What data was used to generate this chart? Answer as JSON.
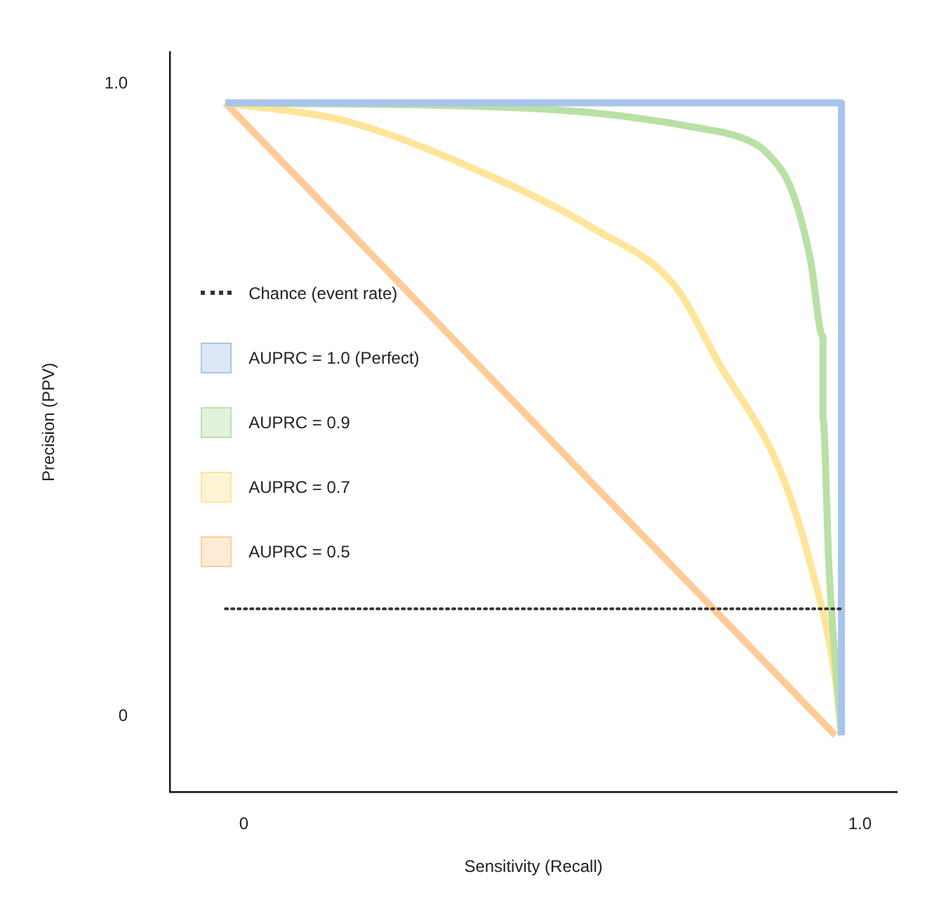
{
  "chart_data": {
    "type": "line",
    "xlabel": "Sensitivity (Recall)",
    "ylabel": "Precision (PPV)",
    "xlim": [
      -0.12,
      1.06
    ],
    "ylim": [
      -0.12,
      1.05
    ],
    "xticks": [
      0,
      {
        "value": 1,
        "label": "1.0"
      }
    ],
    "yticks": [
      0,
      {
        "value": 1,
        "label": "1.0"
      }
    ],
    "grid": false,
    "legend": "left",
    "marker": "none",
    "series": [
      {
        "name": "Chance (event rate)",
        "color": "#333333",
        "line_style": "dotted",
        "x": [
          -0.03,
          0.97
        ],
        "values": [
          0.17,
          0.17
        ]
      },
      {
        "name": "AUPRC = 1.0 (Perfect)",
        "color": "#a9c4eb",
        "x": [
          -0.03,
          0.97,
          0.97
        ],
        "values": [
          0.97,
          0.97,
          -0.03
        ]
      },
      {
        "name": "AUPRC = 0.9",
        "color": "#b9e0a5",
        "x": [
          -0.03,
          0.49,
          0.74,
          0.82,
          0.85,
          0.89,
          0.92,
          0.94,
          0.94,
          0.95,
          0.97
        ],
        "values": [
          0.97,
          0.96,
          0.93,
          0.91,
          0.89,
          0.83,
          0.72,
          0.6,
          0.47,
          0.23,
          -0.03
        ]
      },
      {
        "name": "AUPRC = 0.7",
        "color": "#ffe599",
        "x": [
          -0.03,
          0.17,
          0.41,
          0.57,
          0.7,
          0.77,
          0.87,
          0.92,
          0.96,
          0.97
        ],
        "values": [
          0.97,
          0.94,
          0.85,
          0.77,
          0.68,
          0.56,
          0.39,
          0.24,
          0.06,
          -0.03
        ]
      },
      {
        "name": "AUPRC = 0.5",
        "color": "#ffcc99",
        "x": [
          -0.03,
          0.96
        ],
        "values": [
          0.97,
          -0.03
        ]
      }
    ]
  }
}
